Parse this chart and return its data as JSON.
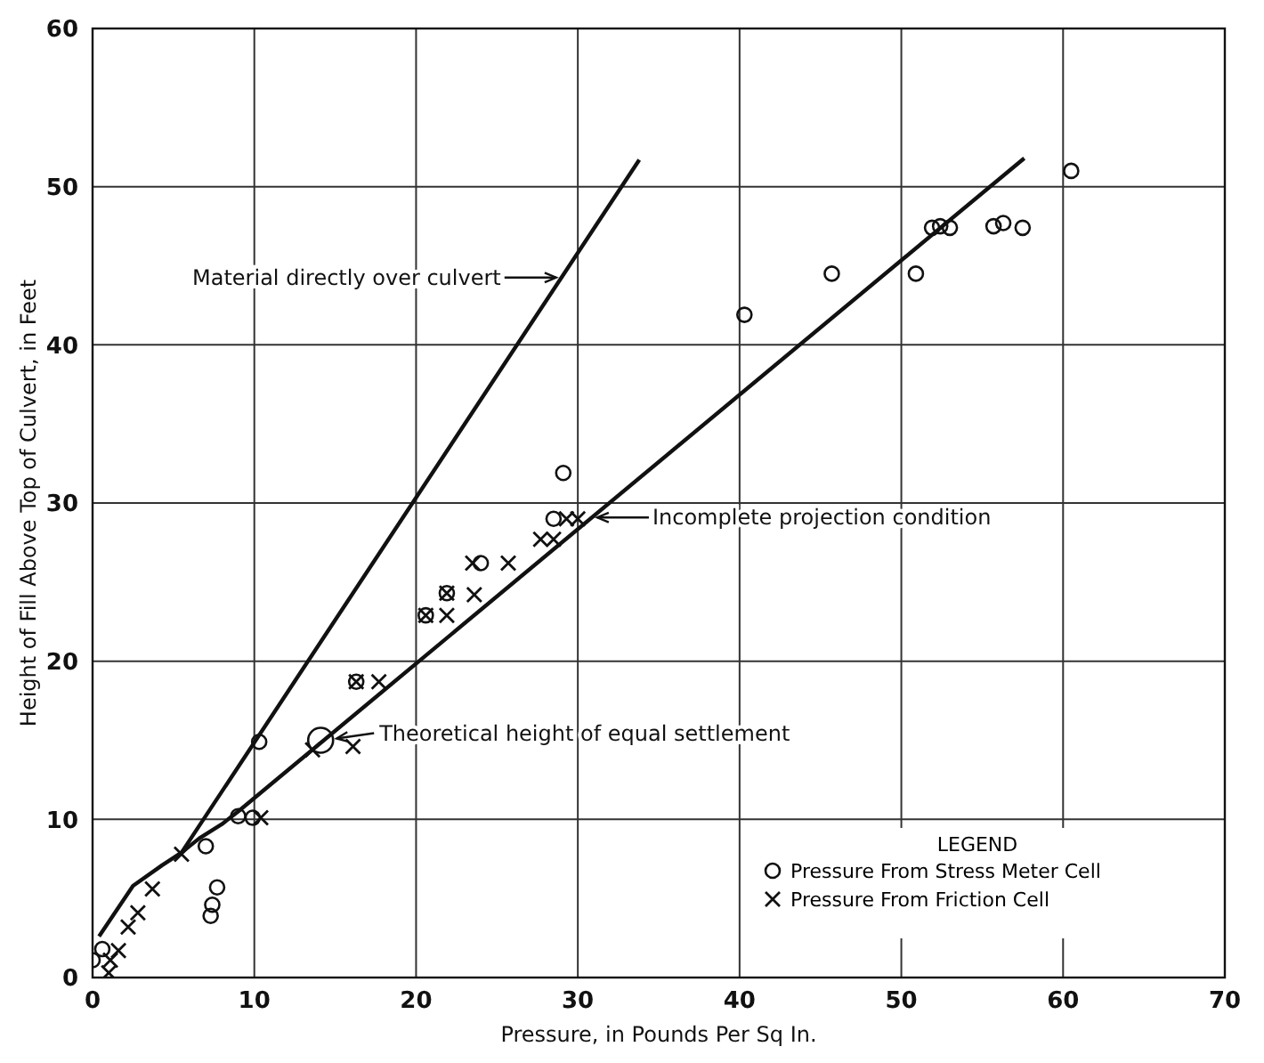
{
  "chart_data": {
    "type": "scatter",
    "xlabel": "Pressure, in Pounds Per Sq In.",
    "ylabel": "Height of Fill Above Top of Culvert, in Feet",
    "xlim": [
      0,
      70
    ],
    "ylim": [
      0,
      60
    ],
    "xticks": [
      0,
      10,
      20,
      30,
      40,
      50,
      60,
      70
    ],
    "yticks": [
      0,
      10,
      20,
      30,
      40,
      50,
      60
    ],
    "grid": true,
    "legend": "bottom right",
    "legend_title": "LEGEND",
    "series": [
      {
        "name": "Pressure From Stress Meter Cell",
        "type": "scatter",
        "marker": "circle",
        "color": "#111111",
        "x": [
          0,
          0.6,
          7.0,
          7.7,
          7.4,
          7.3,
          10.3,
          9.0,
          9.9,
          16.3,
          20.6,
          21.9,
          24.0,
          28.5,
          29.1,
          40.3,
          45.7,
          50.9,
          51.9,
          52.4,
          53.0,
          55.7,
          56.3,
          57.5,
          60.5
        ],
        "values": [
          1.1,
          1.8,
          8.3,
          5.7,
          4.6,
          3.9,
          14.9,
          10.2,
          10.1,
          18.7,
          22.9,
          24.3,
          26.2,
          29.0,
          31.9,
          41.9,
          44.5,
          44.5,
          47.4,
          47.5,
          47.4,
          47.5,
          47.7,
          47.4,
          51.0
        ]
      },
      {
        "name": "Pressure From Friction Cell",
        "type": "scatter",
        "marker": "cross",
        "color": "#111111",
        "x": [
          1.0,
          1.1,
          1.6,
          2.2,
          2.8,
          3.7,
          5.5,
          10.4,
          13.6,
          16.1,
          16.3,
          17.7,
          20.6,
          21.9,
          21.9,
          23.6,
          23.5,
          25.7,
          27.7,
          28.5,
          29.3,
          30.0
        ],
        "values": [
          0.3,
          1.1,
          1.7,
          3.2,
          4.1,
          5.6,
          7.8,
          10.1,
          14.4,
          14.6,
          18.7,
          18.7,
          22.9,
          22.9,
          24.3,
          24.2,
          26.2,
          26.2,
          27.7,
          27.7,
          29.0,
          29.0
        ]
      },
      {
        "name": "Material directly over culvert",
        "type": "line",
        "line_style": "solid",
        "color": "#111111",
        "x": [
          0.4,
          2.5,
          4.3,
          5.5,
          33.8
        ],
        "values": [
          2.6,
          5.8,
          7.1,
          7.9,
          51.7
        ]
      },
      {
        "name": "Incomplete projection condition",
        "type": "line",
        "line_style": "solid",
        "color": "#111111",
        "x": [
          5.5,
          6.6,
          8.0,
          9.0,
          57.6
        ],
        "values": [
          7.9,
          8.8,
          9.7,
          10.5,
          51.8
        ]
      }
    ],
    "annotations": [
      {
        "text": "Theoretical height of equal settlement",
        "x": 14.1,
        "y": 15.0
      }
    ]
  }
}
